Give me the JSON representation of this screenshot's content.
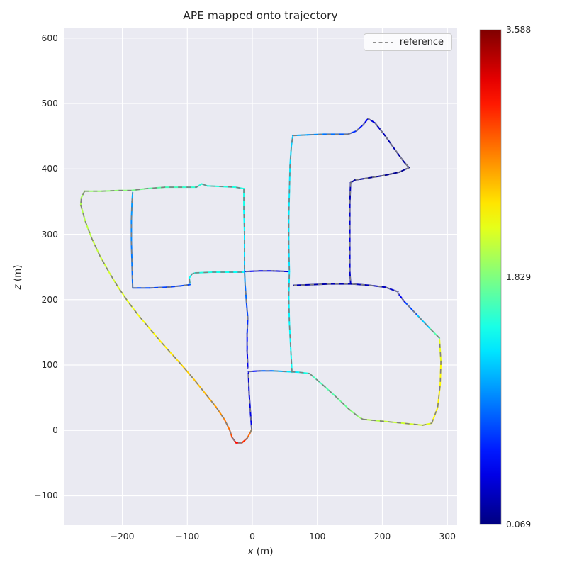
{
  "figure": {
    "title": "APE mapped onto trajectory",
    "x_axis": {
      "var": "x",
      "unit": " (m)"
    },
    "y_axis": {
      "var": "z",
      "unit": " (m)"
    },
    "legend": {
      "label": "reference"
    },
    "colorbar": {
      "max_label": "3.588",
      "mid_label": "1.829",
      "min_label": "0.069"
    },
    "colors": {
      "figure_bg": "#ffffff",
      "plot_bg": "#eaeaf2",
      "grid": "#ffffff",
      "text": "#262626",
      "reference": "#7f7f7f"
    }
  },
  "chart_data": {
    "type": "line",
    "title": "APE mapped onto trajectory",
    "xlabel": "x (m)",
    "ylabel": "z (m)",
    "xlim": [
      -290,
      315
    ],
    "ylim": [
      -145,
      615
    ],
    "xticks": [
      -200,
      -100,
      0,
      100,
      200,
      300
    ],
    "yticks": [
      -100,
      0,
      100,
      200,
      300,
      400,
      500,
      600
    ],
    "grid": true,
    "legend_entries": [
      "reference"
    ],
    "colorbar": {
      "min": 0.069,
      "mid": 1.829,
      "max": 3.588,
      "colormap": "jet"
    },
    "series": [
      {
        "name": "estimate_colored_by_ape",
        "style": "solid-colormapped",
        "point_format": [
          "x_m",
          "z_m",
          "ape_m"
        ],
        "segments": [
          [
            [
              -1,
              2,
              0.45
            ],
            [
              -3,
              28,
              0.4
            ],
            [
              -5,
              58,
              0.38
            ],
            [
              -6,
              88,
              0.35
            ]
          ],
          [
            [
              -6,
              90,
              0.4
            ],
            [
              12,
              91,
              0.7
            ],
            [
              32,
              91,
              1.0
            ],
            [
              52,
              90,
              1.25
            ],
            [
              72,
              89,
              1.4
            ],
            [
              88,
              87,
              1.55
            ]
          ],
          [
            [
              88,
              87,
              1.6
            ],
            [
              108,
              70,
              1.65
            ],
            [
              128,
              52,
              1.7
            ],
            [
              148,
              33,
              1.8
            ],
            [
              163,
              21,
              1.9
            ],
            [
              170,
              17,
              1.95
            ]
          ],
          [
            [
              170,
              17,
              2.0
            ],
            [
              200,
              14,
              2.05
            ],
            [
              232,
              11,
              2.1
            ],
            [
              262,
              8,
              2.15
            ],
            [
              276,
              11,
              2.2
            ]
          ],
          [
            [
              276,
              11,
              2.25
            ],
            [
              285,
              35,
              2.3
            ],
            [
              289,
              70,
              2.3
            ],
            [
              290,
              105,
              2.25
            ],
            [
              288,
              138,
              2.15
            ]
          ],
          [
            [
              288,
              141,
              1.9
            ],
            [
              272,
              157,
              1.45
            ],
            [
              253,
              177,
              0.95
            ],
            [
              234,
              197,
              0.55
            ],
            [
              224,
              210,
              0.4
            ]
          ],
          [
            [
              224,
              212,
              0.35
            ],
            [
              205,
              219,
              0.3
            ],
            [
              180,
              222,
              0.27
            ],
            [
              152,
              224,
              0.25
            ],
            [
              120,
              224,
              0.22
            ],
            [
              92,
              223,
              0.2
            ],
            [
              64,
              222,
              0.28
            ]
          ],
          [
            [
              -10,
              243,
              0.5
            ],
            [
              10,
              244,
              0.45
            ],
            [
              32,
              244,
              0.4
            ],
            [
              55,
              243,
              0.35
            ]
          ],
          [
            [
              61,
              89,
              1.45
            ],
            [
              59,
              125,
              1.4
            ],
            [
              57,
              165,
              1.38
            ],
            [
              56,
              205,
              1.35
            ],
            [
              57,
              243,
              1.3
            ],
            [
              56,
              285,
              1.3
            ],
            [
              56,
              325,
              1.32
            ],
            [
              57,
              365,
              1.35
            ],
            [
              58,
              405,
              1.3
            ],
            [
              60,
              435,
              1.25
            ],
            [
              62,
              449,
              1.2
            ]
          ],
          [
            [
              62,
              451,
              1.15
            ],
            [
              85,
              452,
              1.05
            ],
            [
              110,
              453,
              0.95
            ],
            [
              134,
              453,
              0.85
            ],
            [
              147,
              453,
              0.78
            ]
          ],
          [
            [
              147,
              453,
              0.72
            ],
            [
              160,
              458,
              0.62
            ],
            [
              171,
              468,
              0.52
            ],
            [
              178,
              477,
              0.42
            ],
            [
              189,
              470,
              0.32
            ],
            [
              204,
              451,
              0.25
            ],
            [
              219,
              430,
              0.2
            ],
            [
              233,
              411,
              0.17
            ],
            [
              241,
              402,
              0.15
            ]
          ],
          [
            [
              241,
              402,
              0.14
            ],
            [
              226,
              395,
              0.13
            ],
            [
              203,
              390,
              0.13
            ],
            [
              178,
              386,
              0.14
            ],
            [
              158,
              383,
              0.16
            ],
            [
              151,
              379,
              0.18
            ]
          ],
          [
            [
              151,
              379,
              0.22
            ],
            [
              150,
              345,
              0.3
            ],
            [
              150,
              308,
              0.38
            ],
            [
              150,
              270,
              0.42
            ],
            [
              150,
              243,
              0.35
            ],
            [
              151,
              226,
              0.3
            ]
          ],
          [
            [
              -13,
              370,
              1.5
            ],
            [
              -13,
              338,
              1.42
            ],
            [
              -12,
              302,
              1.35
            ],
            [
              -12,
              265,
              1.25
            ],
            [
              -12,
              244,
              1.15
            ],
            [
              -11,
              222,
              0.95
            ],
            [
              -9,
              195,
              0.8
            ],
            [
              -7,
              172,
              0.7
            ],
            [
              -8,
              148,
              0.6
            ],
            [
              -8,
              122,
              0.5
            ],
            [
              -7,
              96,
              0.42
            ]
          ],
          [
            [
              -88,
              241,
              1.5
            ],
            [
              -62,
              242,
              1.47
            ],
            [
              -36,
              242,
              1.43
            ],
            [
              -14,
              242,
              1.38
            ]
          ],
          [
            [
              -96,
              225,
              1.3
            ],
            [
              -97,
              233,
              1.38
            ],
            [
              -93,
              239,
              1.44
            ],
            [
              -88,
              241,
              1.48
            ]
          ],
          [
            [
              -184,
              218,
              0.8
            ],
            [
              -158,
              218,
              0.75
            ],
            [
              -132,
              219,
              0.72
            ],
            [
              -110,
              221,
              0.72
            ],
            [
              -96,
              223,
              0.78
            ]
          ],
          [
            [
              -184,
              218,
              0.85
            ],
            [
              -185,
              252,
              0.9
            ],
            [
              -186,
              288,
              0.95
            ],
            [
              -186,
              322,
              1.0
            ],
            [
              -185,
              350,
              1.05
            ],
            [
              -184,
              364,
              1.15
            ]
          ],
          [
            [
              -258,
              366,
              1.92
            ],
            [
              -232,
              366,
              1.9
            ],
            [
              -205,
              367,
              1.88
            ],
            [
              -186,
              367,
              1.85
            ],
            [
              -162,
              370,
              1.75
            ],
            [
              -134,
              372,
              1.65
            ],
            [
              -106,
              372,
              1.58
            ],
            [
              -86,
              372,
              1.52
            ],
            [
              -78,
              377,
              1.5
            ],
            [
              -69,
              374,
              1.5
            ],
            [
              -45,
              373,
              1.5
            ],
            [
              -26,
              372,
              1.49
            ],
            [
              -14,
              370,
              1.48
            ]
          ],
          [
            [
              -258,
              366,
              1.94
            ],
            [
              -263,
              356,
              1.97
            ],
            [
              -264,
              345,
              2.0
            ]
          ],
          [
            [
              -264,
              345,
              2.0
            ],
            [
              -257,
              320,
              2.02
            ],
            [
              -247,
              294,
              2.05
            ],
            [
              -235,
              268,
              2.08
            ],
            [
              -221,
              243,
              2.1
            ],
            [
              -207,
              220,
              2.14
            ],
            [
              -192,
              198,
              2.18
            ],
            [
              -176,
              177,
              2.22
            ],
            [
              -159,
              157,
              2.26
            ],
            [
              -142,
              137,
              2.3
            ],
            [
              -124,
              117,
              2.35
            ],
            [
              -106,
              97,
              2.4
            ],
            [
              -89,
              77,
              2.46
            ],
            [
              -72,
              56,
              2.52
            ],
            [
              -56,
              36,
              2.6
            ],
            [
              -43,
              17,
              2.7
            ],
            [
              -35,
              1,
              2.82
            ],
            [
              -31,
              -11,
              2.95
            ]
          ],
          [
            [
              -31,
              -11,
              3.05
            ],
            [
              -25,
              -19,
              3.15
            ],
            [
              -16,
              -19,
              3.1
            ],
            [
              -8,
              -12,
              2.9
            ],
            [
              -3,
              -3,
              2.7
            ],
            [
              -1,
              2,
              2.5
            ]
          ]
        ]
      },
      {
        "name": "reference",
        "style": "dashed",
        "color": "#7f7f7f",
        "geometry": "same as estimate_colored_by_ape (overlapping ground truth)"
      }
    ]
  }
}
